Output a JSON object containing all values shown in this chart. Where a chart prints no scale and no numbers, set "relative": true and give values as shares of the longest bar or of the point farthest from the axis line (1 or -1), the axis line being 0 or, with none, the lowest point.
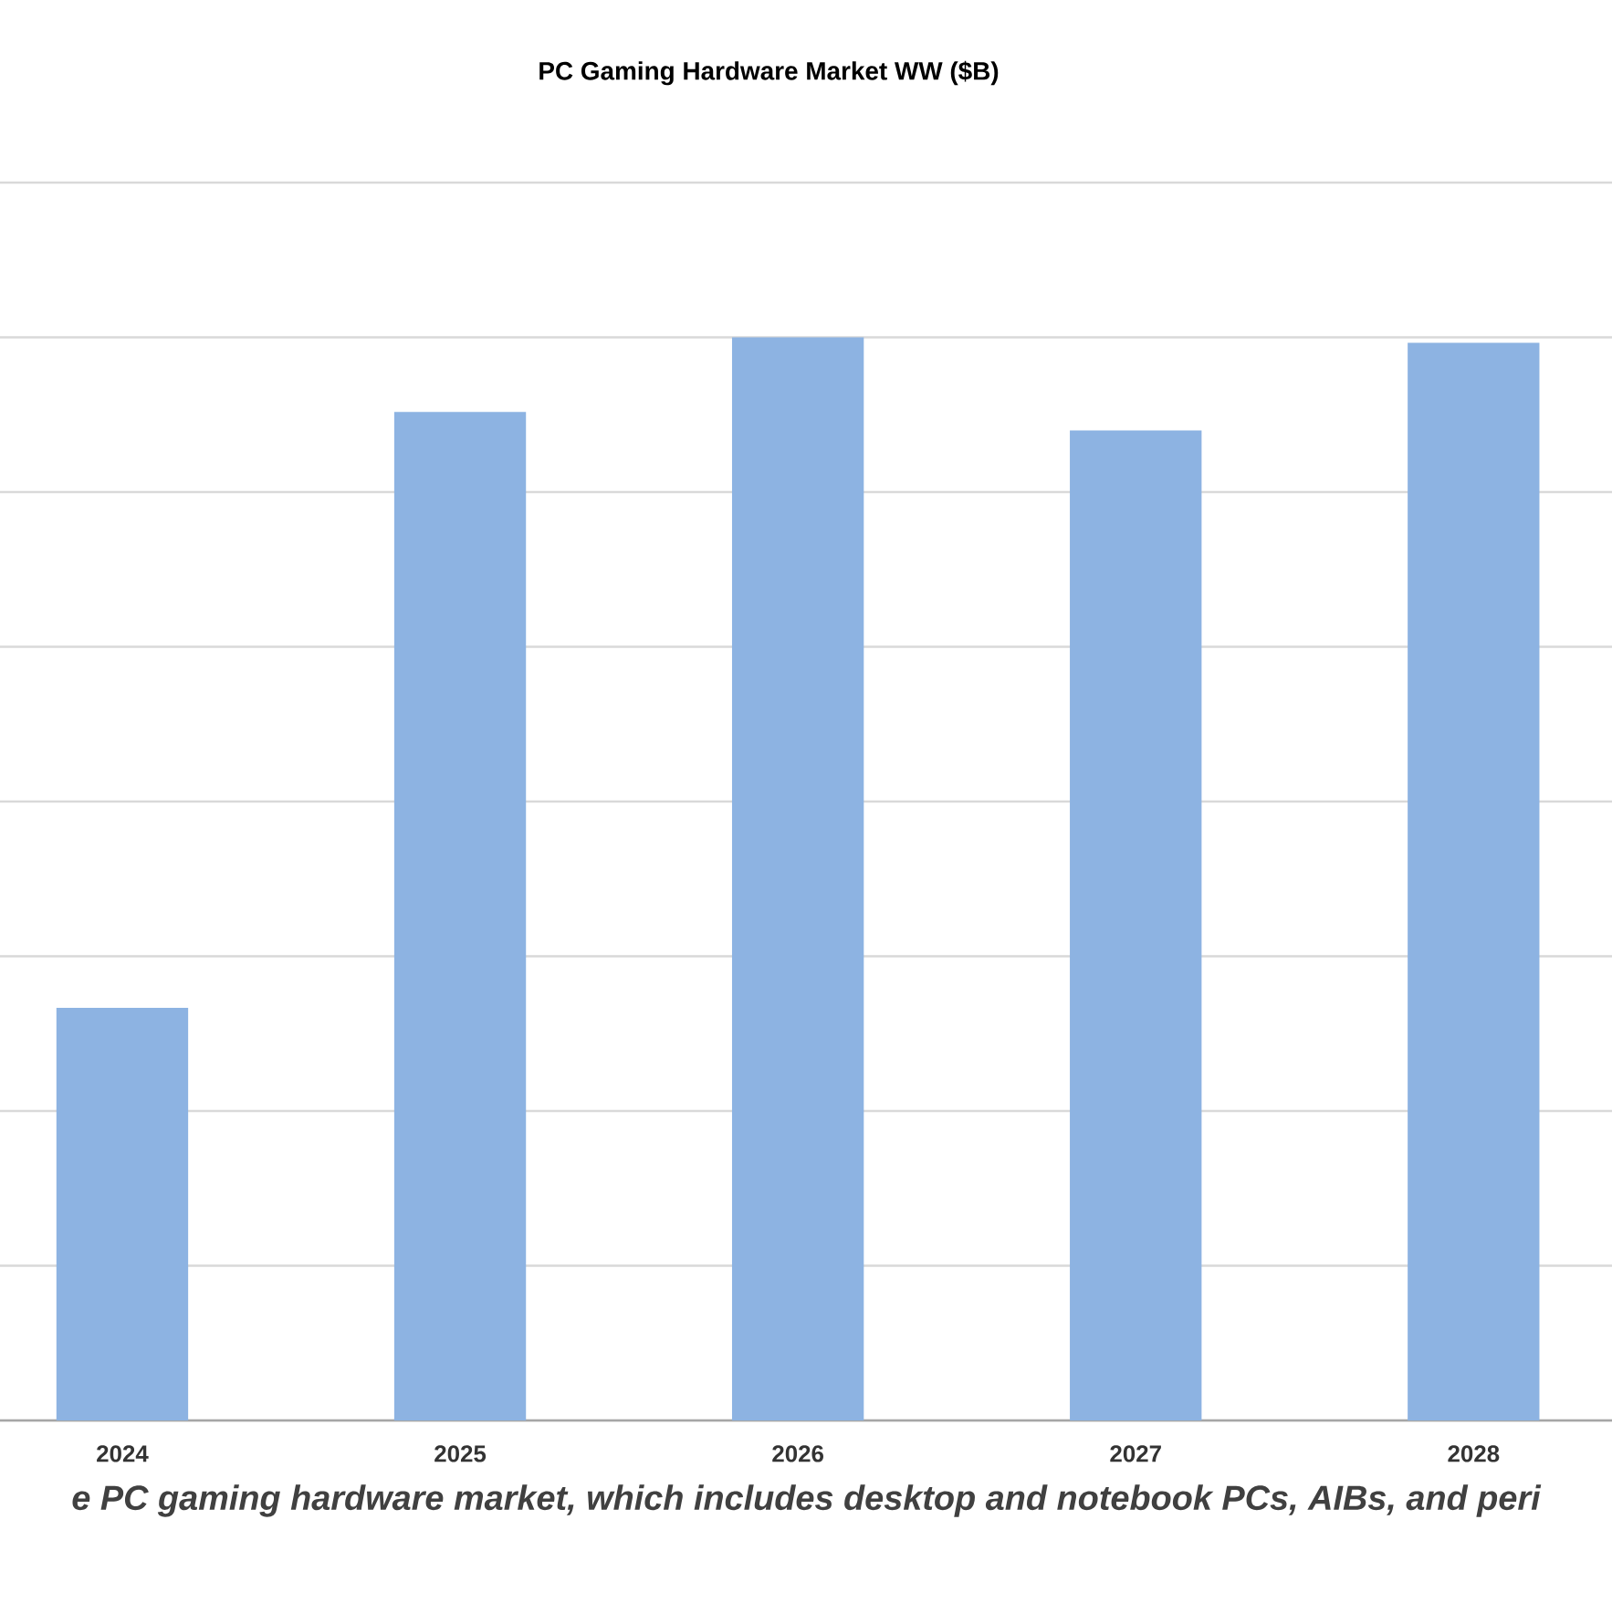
{
  "chart_data": {
    "type": "bar",
    "title": "PC Gaming  Hardware Market WW ($B)",
    "categories": [
      "2024",
      "2025",
      "2026",
      "2027",
      "2028"
    ],
    "values": [
      0.381,
      0.931,
      1,
      0.914,
      0.995
    ],
    "color": "#8db3e2",
    "relative": true,
    "grid": "y",
    "annotations": [
      "e PC gaming hardware market, which includes desktop and notebook PCs, AIBs, and peri"
    ]
  }
}
